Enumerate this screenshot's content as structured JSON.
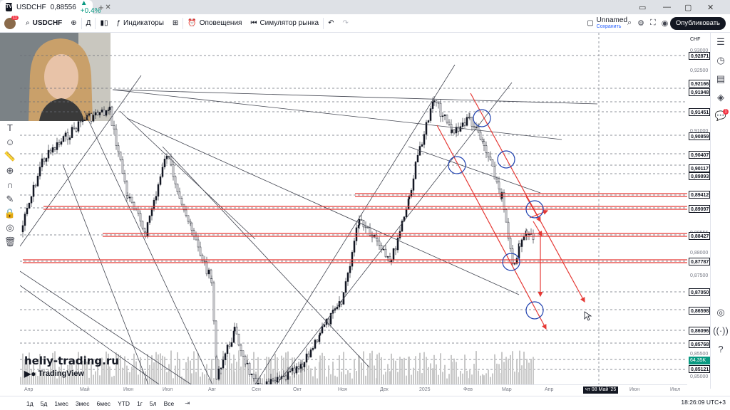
{
  "browser": {
    "tab_symbol": "USDCHF",
    "tab_price": "0,88556",
    "tab_change": "▲ +0.4%",
    "tab_logo": "TV"
  },
  "toolbar": {
    "symbol": "USDCHF",
    "interval": "Д",
    "indicators": "Индикаторы",
    "alerts": "Оповещения",
    "replay": "Симулятор рынка",
    "layout_name": "Unnamed",
    "layout_saved": "Сохранить",
    "publish": "Опубликовать",
    "avatar_badge": "11"
  },
  "price_axis": {
    "currency": "CHF",
    "labels": [
      {
        "value": "0,93000",
        "style": "plain"
      },
      {
        "value": "0,92871",
        "style": "box"
      },
      {
        "value": "0,92500",
        "style": "plain"
      },
      {
        "value": "0,92166",
        "style": "box"
      },
      {
        "value": "0,91948",
        "style": "box"
      },
      {
        "value": "0,91451",
        "style": "box"
      },
      {
        "value": "0,91000",
        "style": "plain"
      },
      {
        "value": "0,90859",
        "style": "box"
      },
      {
        "value": "0,90500",
        "style": "plain"
      },
      {
        "value": "0,90407",
        "style": "box"
      },
      {
        "value": "0,90117",
        "style": "box"
      },
      {
        "value": "0,89893",
        "style": "box"
      },
      {
        "value": "0,89412",
        "style": "box"
      },
      {
        "value": "0,89097",
        "style": "box"
      },
      {
        "value": "0,88556",
        "style": "plain"
      },
      {
        "value": "0,88427",
        "style": "box"
      },
      {
        "value": "0,88000",
        "style": "plain"
      },
      {
        "value": "0,87787",
        "style": "box"
      },
      {
        "value": "0,87500",
        "style": "plain"
      },
      {
        "value": "0,87050",
        "style": "box"
      },
      {
        "value": "0,86598",
        "style": "box"
      },
      {
        "value": "0,86096",
        "style": "box"
      },
      {
        "value": "0,85768",
        "style": "box"
      },
      {
        "value": "0,85500",
        "style": "plain"
      },
      {
        "value": "64,35K",
        "style": "cur"
      },
      {
        "value": "0,85121",
        "style": "box"
      },
      {
        "value": "0,85000",
        "style": "plain"
      }
    ]
  },
  "time_axis": {
    "labels": [
      "Апр",
      "Май",
      "Июн",
      "Июл",
      "Авг",
      "Сен",
      "Окт",
      "Ноя",
      "Дек",
      "2025",
      "Фев",
      "Мар",
      "Апр",
      "Июн",
      "Июл"
    ],
    "crosshair_date": "чт 08 Май '25"
  },
  "bottom_bar": {
    "ranges": [
      "1д",
      "5д",
      "1мес",
      "3мес",
      "6мес",
      "YTD",
      "1г",
      "5л",
      "Все"
    ],
    "clock": "18:26:09 UTC+3"
  },
  "watermark": {
    "site": "heliy-trading.ru",
    "brand": "TradingView"
  },
  "colors": {
    "level_red": "#e53935",
    "up_candle": "#131722",
    "volume": "#c8c8c8",
    "circle_blue": "#1e40af",
    "accent_green": "#089981"
  },
  "icons": {
    "left_tools": [
      "text-icon",
      "emoji-icon",
      "ruler-icon",
      "zoom-icon",
      "magnet-icon",
      "pencil-lock-icon",
      "lock-icon",
      "eye-icon",
      "trash-icon"
    ],
    "right_tools": [
      "watchlist-icon",
      "alerts-clock-icon",
      "data-window-icon",
      "layers-icon",
      "chat-icon"
    ]
  }
}
